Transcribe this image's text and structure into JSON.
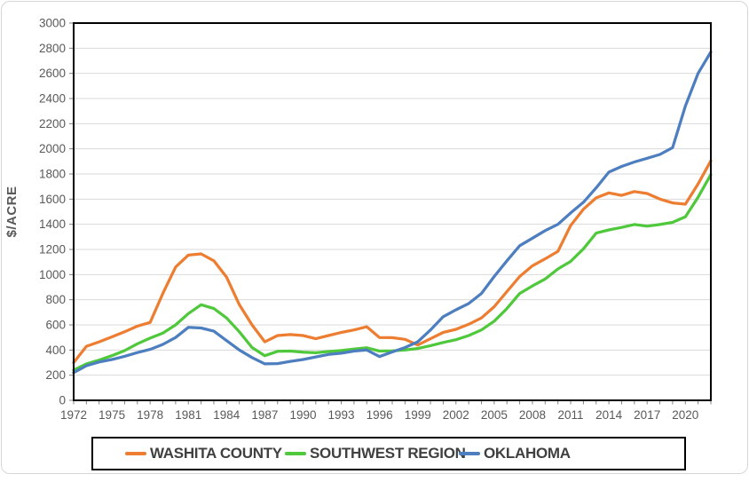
{
  "chart_data": {
    "type": "line",
    "title": "",
    "ylabel": "$/ACRE",
    "xlabel": "",
    "ylim": [
      0,
      3000
    ],
    "ytick_step": 200,
    "xlim": [
      1972,
      2022
    ],
    "grid": true,
    "legend_position": "bottom",
    "x": [
      1972,
      1973,
      1974,
      1975,
      1976,
      1977,
      1978,
      1979,
      1980,
      1981,
      1982,
      1983,
      1984,
      1985,
      1986,
      1987,
      1988,
      1989,
      1990,
      1991,
      1992,
      1993,
      1994,
      1995,
      1996,
      1997,
      1998,
      1999,
      2000,
      2001,
      2002,
      2003,
      2004,
      2005,
      2006,
      2007,
      2008,
      2009,
      2010,
      2011,
      2012,
      2013,
      2014,
      2015,
      2016,
      2017,
      2018,
      2019,
      2020,
      2021,
      2022
    ],
    "xtick_labels": [
      "1972",
      "1975",
      "1978",
      "1981",
      "1984",
      "1987",
      "1990",
      "1993",
      "1996",
      "1999",
      "2002",
      "2005",
      "2008",
      "2011",
      "2014",
      "2017",
      "2020"
    ],
    "ytick_labels": [
      "0",
      "200",
      "400",
      "600",
      "800",
      "1000",
      "1200",
      "1400",
      "1600",
      "1800",
      "2000",
      "2200",
      "2400",
      "2600",
      "2800",
      "3000"
    ],
    "series": [
      {
        "name": "WASHITA COUNTY",
        "color": "#ED7D31",
        "values": [
          300,
          430,
          465,
          505,
          545,
          590,
          620,
          850,
          1060,
          1155,
          1165,
          1110,
          980,
          760,
          600,
          465,
          515,
          523,
          515,
          490,
          515,
          540,
          560,
          585,
          500,
          498,
          485,
          440,
          490,
          540,
          565,
          605,
          655,
          745,
          865,
          985,
          1070,
          1125,
          1185,
          1390,
          1520,
          1610,
          1650,
          1630,
          1660,
          1645,
          1600,
          1570,
          1560,
          1720,
          1905
        ]
      },
      {
        "name": "SOUTHWEST REGION",
        "color": "#4FC83C",
        "values": [
          240,
          290,
          320,
          355,
          395,
          450,
          495,
          535,
          600,
          690,
          760,
          730,
          655,
          545,
          420,
          355,
          390,
          392,
          383,
          378,
          388,
          396,
          408,
          418,
          392,
          394,
          400,
          412,
          435,
          460,
          482,
          515,
          560,
          630,
          730,
          850,
          910,
          965,
          1045,
          1105,
          1205,
          1330,
          1355,
          1375,
          1398,
          1385,
          1398,
          1415,
          1460,
          1615,
          1795
        ]
      },
      {
        "name": "OKLAHOMA",
        "color": "#4D7EBF",
        "values": [
          220,
          275,
          305,
          325,
          350,
          380,
          405,
          445,
          500,
          580,
          575,
          550,
          475,
          400,
          340,
          290,
          292,
          310,
          325,
          345,
          365,
          375,
          392,
          400,
          348,
          385,
          420,
          465,
          560,
          665,
          720,
          770,
          850,
          985,
          1110,
          1230,
          1290,
          1350,
          1400,
          1490,
          1575,
          1690,
          1815,
          1860,
          1895,
          1925,
          1955,
          2010,
          2340,
          2600,
          2770
        ]
      }
    ]
  },
  "style": {
    "grid_color": "#D9D9D9",
    "tick_color": "#7F7F7F",
    "axis_text_color": "#595959",
    "plot_border_color": "#000000",
    "legend_text_color": "#404040"
  }
}
